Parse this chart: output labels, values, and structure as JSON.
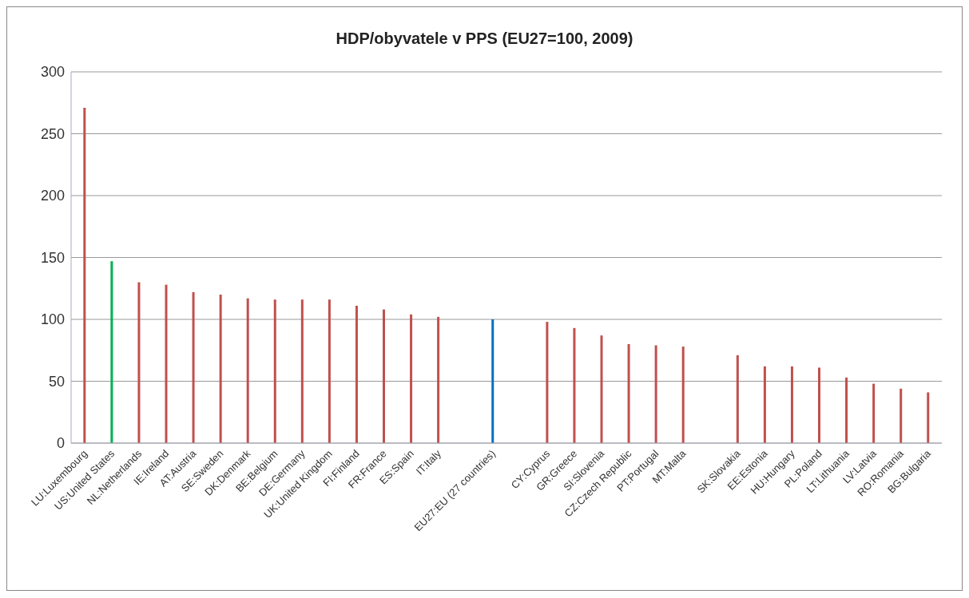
{
  "chart_data": {
    "type": "bar",
    "title": "HDP/obyvatele v PPS (EU27=100, 2009)",
    "categories": [
      "LU:Luxembourg",
      "US:United States",
      "NL:Netherlands",
      "IE:Ireland",
      "AT:Austria",
      "SE:Sweden",
      "DK:Denmark",
      "BE:Belgium",
      "DE:Germany",
      "UK:United Kingdom",
      "FI:Finland",
      "FR:France",
      "ES:Spain",
      "IT:Italy",
      null,
      "EU27:EU (27 countries)",
      null,
      "CY:Cyprus",
      "GR:Greece",
      "SI:Slovenia",
      "CZ:Czech Republic",
      "PT:Portugal",
      "MT:Malta",
      null,
      "SK:Slovakia",
      "EE:Estonia",
      "HU:Hungary",
      "PL:Poland",
      "LT:Lithuania",
      "LV:Latvia",
      "RO:Romania",
      "BG:Bulgaria"
    ],
    "values": [
      271,
      147,
      130,
      128,
      122,
      120,
      117,
      116,
      116,
      116,
      111,
      108,
      104,
      102,
      null,
      100,
      null,
      98,
      93,
      87,
      80,
      79,
      78,
      null,
      71,
      62,
      62,
      61,
      53,
      48,
      44,
      41
    ],
    "colors": [
      "#c0504d",
      "#00b050",
      "#c0504d",
      "#c0504d",
      "#c0504d",
      "#c0504d",
      "#c0504d",
      "#c0504d",
      "#c0504d",
      "#c0504d",
      "#c0504d",
      "#c0504d",
      "#c0504d",
      "#c0504d",
      "#c0504d",
      "#0070c0",
      "#c0504d",
      "#c0504d",
      "#c0504d",
      "#c0504d",
      "#c0504d",
      "#c0504d",
      "#c0504d",
      "#c0504d",
      "#c0504d",
      "#c0504d",
      "#c0504d",
      "#c0504d",
      "#c0504d",
      "#c0504d",
      "#c0504d",
      "#c0504d"
    ],
    "ylim": [
      0,
      300
    ],
    "yticks": [
      0,
      50,
      100,
      150,
      200,
      250,
      300
    ],
    "grid": "y",
    "legend": false
  }
}
